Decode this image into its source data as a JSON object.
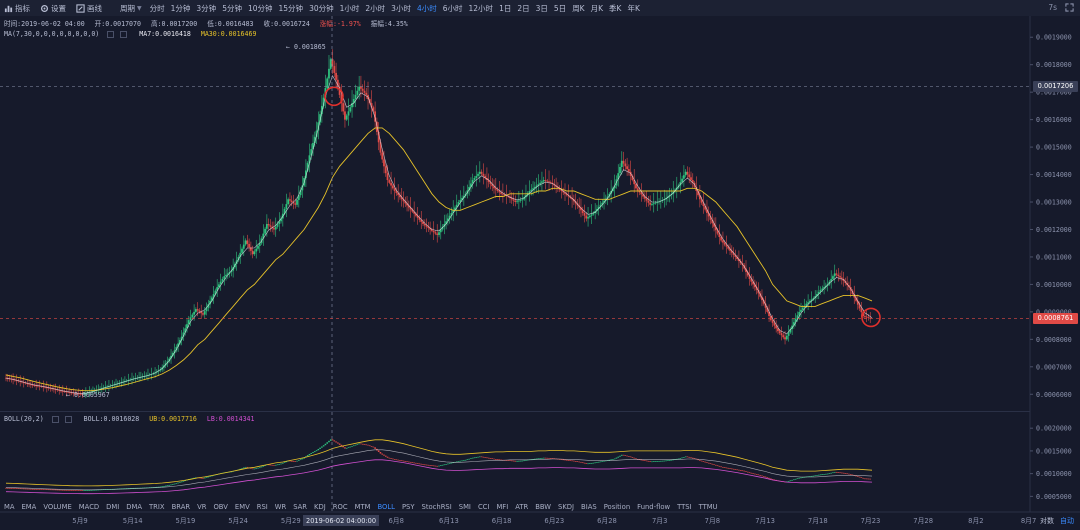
{
  "toolbar": {
    "indicator_label": "指标",
    "settings_label": "设置",
    "draw_label": "画线",
    "period_label": "周期",
    "periods": [
      "分时",
      "1分钟",
      "3分钟",
      "5分钟",
      "10分钟",
      "15分钟",
      "30分钟",
      "1小时",
      "2小时",
      "3小时",
      "4小时",
      "6小时",
      "12小时",
      "1日",
      "2日",
      "3日",
      "5日",
      "周K",
      "月K",
      "季K",
      "年K"
    ],
    "active_period": "4小时",
    "right_value": "7s"
  },
  "ohlc": {
    "time": "时间:2019-06-02 04:00",
    "open": "开:0.0017070",
    "high": "高:0.0017200",
    "low": "低:0.0016483",
    "close": "收:0.0016724",
    "change": "涨幅:-1.97%",
    "amplitude": "振幅:4.35%"
  },
  "ma_line": {
    "label": "MA(7,30,0,0,0,0,0,0,0,0)",
    "ma7": "MA7:0.0016418",
    "ma30": "MA30:0.0016469"
  },
  "boll_line": {
    "label": "BOLL(20,2)",
    "boll": "BOLL:0.0016028",
    "ub": "UB:0.0017716",
    "lb": "LB:0.0014341"
  },
  "indicators": [
    "MA",
    "EMA",
    "VOLUME",
    "MACD",
    "DMI",
    "DMA",
    "TRIX",
    "BRAR",
    "VR",
    "OBV",
    "EMV",
    "RSI",
    "WR",
    "SAR",
    "KDJ",
    "ROC",
    "MTM",
    "BOLL",
    "PSY",
    "StochRSI",
    "SMI",
    "CCI",
    "MFI",
    "ATR",
    "BBW",
    "SKDJ",
    "BIAS",
    "Position",
    "Fund-flow",
    "TTSI",
    "TTMU"
  ],
  "active_indicator": "BOLL",
  "chart_data": {
    "type": "candlestick",
    "main_axis_ticks": [
      "0.0019000",
      "0.0018000",
      "0.0017000",
      "0.0016000",
      "0.0015000",
      "0.0014000",
      "0.0013000",
      "0.0012000",
      "0.0011000",
      "0.0010000",
      "0.0009000",
      "0.0008000",
      "0.0007000",
      "0.0006000"
    ],
    "main_range": [
      0.00055,
      0.00197
    ],
    "sub_axis_ticks": [
      "0.0020000",
      "0.0015000",
      "0.0010000",
      "0.0005000"
    ],
    "sub_range": [
      0.00042,
      0.00218
    ],
    "x_ticks": [
      "5月9",
      "5月14",
      "5月19",
      "5月24",
      "5月29",
      "6月3",
      "6月8",
      "6月13",
      "6月18",
      "6月23",
      "6月28",
      "7月3",
      "7月8",
      "7月13",
      "7月18",
      "7月23",
      "7月28",
      "8月2",
      "8月7"
    ],
    "crosshair_time": "2019-06-02 04:00:00",
    "crosshair_price": "0.0017206",
    "last_price": "0.0008761",
    "high_annotation": "0.001865",
    "low_annotation": "0.0005967",
    "close_series": [
      0.00066,
      0.000655,
      0.000648,
      0.00064,
      0.000633,
      0.00063,
      0.000624,
      0.000619,
      0.000612,
      0.000608,
      0.000603,
      0.000601,
      0.000608,
      0.000615,
      0.000625,
      0.000632,
      0.00064,
      0.000648,
      0.000656,
      0.000662,
      0.000668,
      0.000676,
      0.00069,
      0.00072,
      0.00076,
      0.00081,
      0.00087,
      0.00091,
      0.00089,
      0.00094,
      0.00099,
      0.00103,
      0.00105,
      0.0011,
      0.00116,
      0.00111,
      0.00115,
      0.00122,
      0.0012,
      0.00124,
      0.00131,
      0.00129,
      0.00136,
      0.00147,
      0.00156,
      0.00168,
      0.00182,
      0.00172,
      0.0016,
      0.00166,
      0.00172,
      0.00169,
      0.00163,
      0.00148,
      0.00138,
      0.00134,
      0.00131,
      0.00128,
      0.00125,
      0.00122,
      0.0012,
      0.00118,
      0.00122,
      0.00126,
      0.0013,
      0.00133,
      0.00138,
      0.00141,
      0.00138,
      0.00135,
      0.00133,
      0.00132,
      0.0013,
      0.00131,
      0.00134,
      0.00136,
      0.00138,
      0.00137,
      0.00135,
      0.00133,
      0.00131,
      0.00128,
      0.00124,
      0.00126,
      0.00129,
      0.00132,
      0.00136,
      0.00145,
      0.00141,
      0.00135,
      0.00132,
      0.00129,
      0.0013,
      0.00131,
      0.00133,
      0.00136,
      0.00141,
      0.00137,
      0.00131,
      0.00126,
      0.00121,
      0.00116,
      0.00113,
      0.0011,
      0.00107,
      0.00102,
      0.00098,
      0.00093,
      0.00087,
      0.00083,
      0.0008,
      0.00085,
      0.0009,
      0.00093,
      0.00095,
      0.00098,
      0.001,
      0.00104,
      0.00102,
      0.00099,
      0.00094,
      0.000885,
      0.000876
    ],
    "ma30_series": [
      0.00067,
      0.000665,
      0.00066,
      0.000653,
      0.000646,
      0.00064,
      0.000634,
      0.000628,
      0.000623,
      0.000618,
      0.000615,
      0.000613,
      0.000613,
      0.000616,
      0.00062,
      0.000624,
      0.00063,
      0.000636,
      0.000643,
      0.00065,
      0.000657,
      0.000664,
      0.000674,
      0.000688,
      0.000705,
      0.000725,
      0.00075,
      0.00078,
      0.0008,
      0.00083,
      0.00086,
      0.00089,
      0.00092,
      0.00095,
      0.00098,
      0.001,
      0.00103,
      0.00106,
      0.00109,
      0.00111,
      0.00114,
      0.00117,
      0.0012,
      0.00124,
      0.00128,
      0.00133,
      0.00139,
      0.00143,
      0.00146,
      0.00149,
      0.00152,
      0.00155,
      0.00157,
      0.00157,
      0.00155,
      0.00152,
      0.00149,
      0.00145,
      0.00141,
      0.00137,
      0.00133,
      0.0013,
      0.00128,
      0.00127,
      0.00127,
      0.00128,
      0.00129,
      0.0013,
      0.00131,
      0.00132,
      0.00132,
      0.00133,
      0.00133,
      0.00133,
      0.00133,
      0.00134,
      0.00134,
      0.00135,
      0.00135,
      0.00134,
      0.00134,
      0.00133,
      0.00132,
      0.00131,
      0.00131,
      0.00131,
      0.00132,
      0.00133,
      0.00134,
      0.00134,
      0.00134,
      0.00134,
      0.00134,
      0.00134,
      0.00134,
      0.00134,
      0.00135,
      0.00135,
      0.00134,
      0.00132,
      0.0013,
      0.00127,
      0.00124,
      0.00121,
      0.00117,
      0.00113,
      0.00109,
      0.00105,
      0.001,
      0.00097,
      0.00094,
      0.00093,
      0.00092,
      0.00092,
      0.00092,
      0.00093,
      0.00094,
      0.00095,
      0.00096,
      0.00096,
      0.00096,
      0.00095,
      0.00094
    ]
  }
}
